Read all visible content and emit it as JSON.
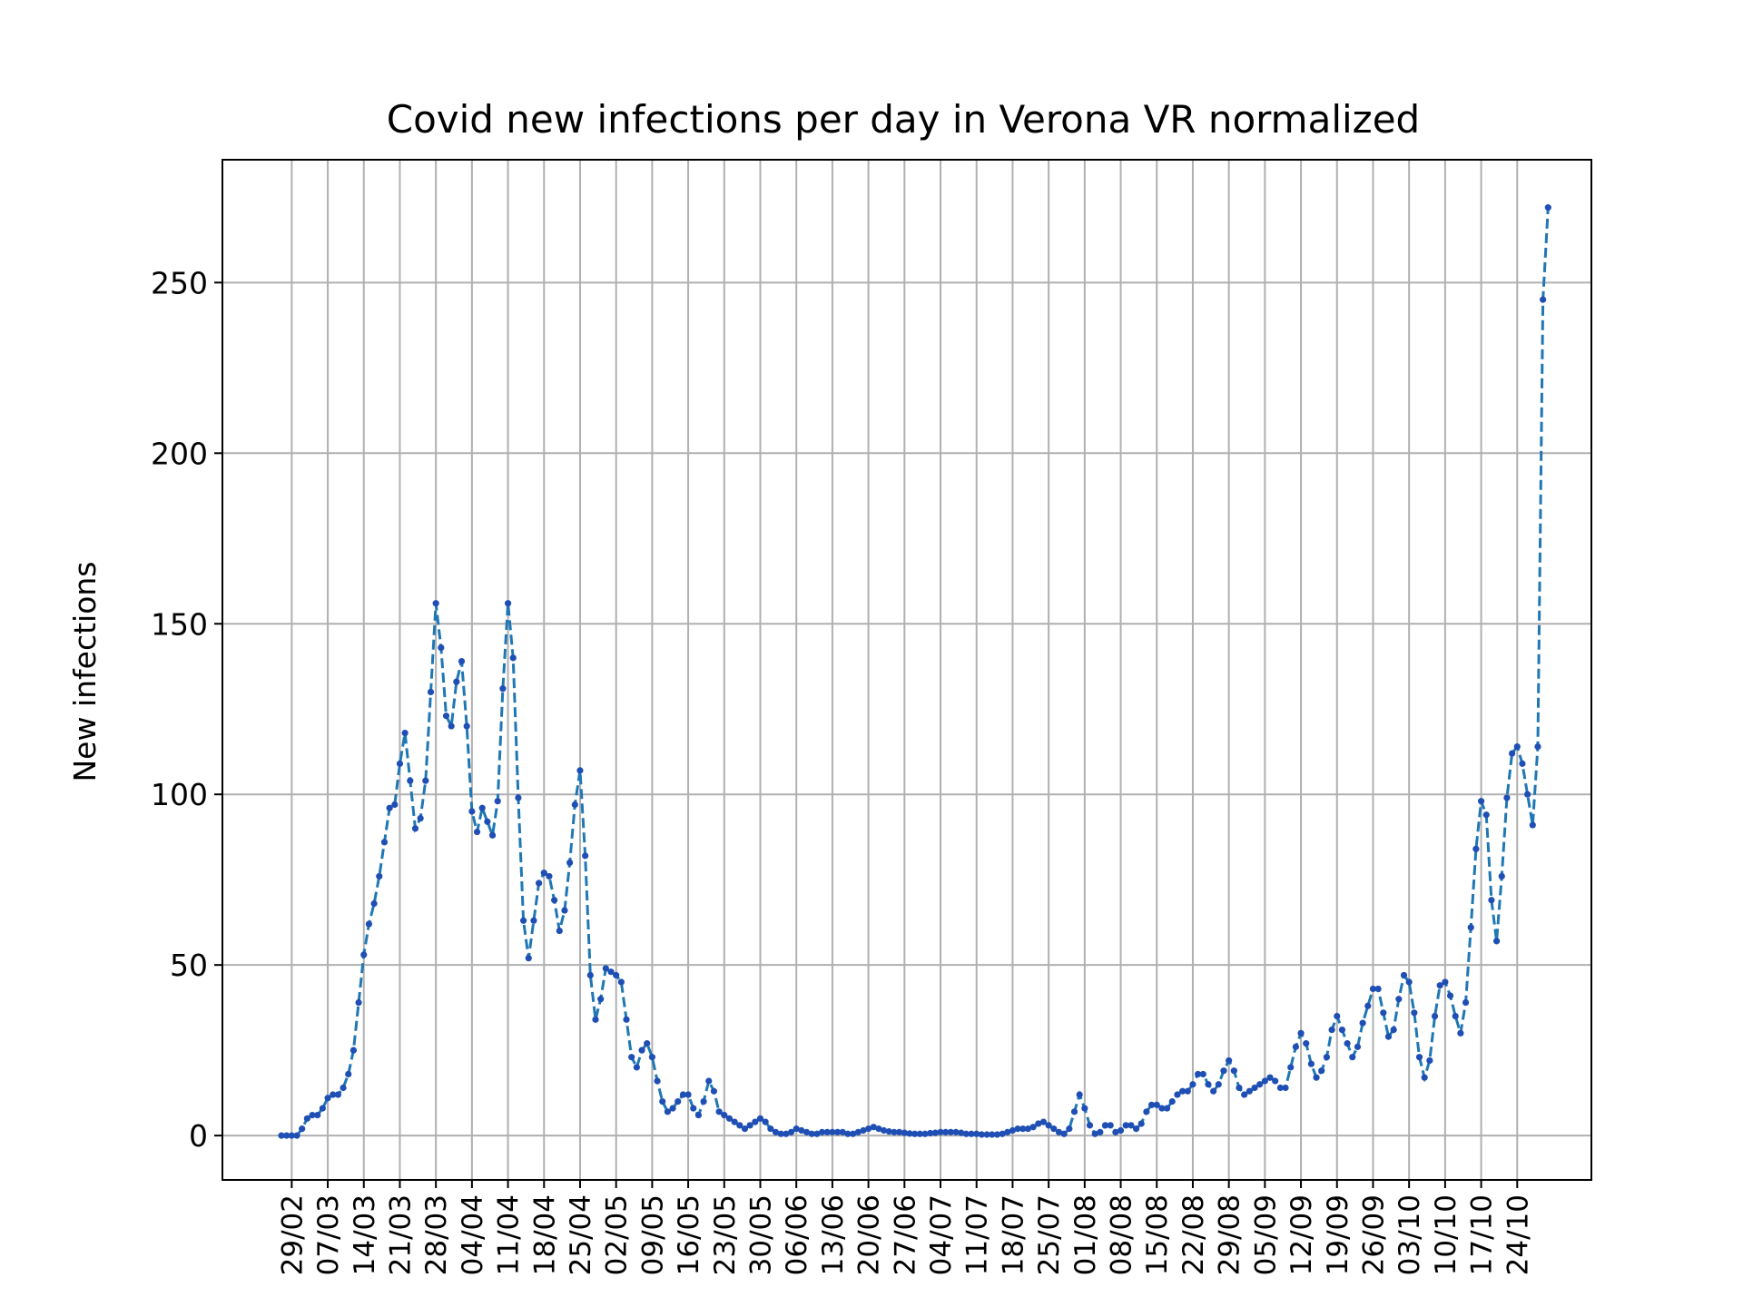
{
  "chart_data": {
    "type": "line",
    "title": "Covid new infections per day in Verona VR normalized",
    "xlabel": "",
    "ylabel": "New infections",
    "ylim": [
      -13,
      286
    ],
    "yticks": [
      0,
      50,
      100,
      150,
      200,
      250
    ],
    "x_start_date": "2020-02-27",
    "xtick_labels": [
      "29/02",
      "07/03",
      "14/03",
      "21/03",
      "28/03",
      "04/04",
      "11/04",
      "18/04",
      "25/04",
      "02/05",
      "09/05",
      "16/05",
      "23/05",
      "30/05",
      "06/06",
      "13/06",
      "20/06",
      "27/06",
      "04/07",
      "11/07",
      "18/07",
      "25/07",
      "01/08",
      "08/08",
      "15/08",
      "22/08",
      "29/08",
      "05/09",
      "12/09",
      "19/09",
      "26/09",
      "03/10",
      "10/10",
      "17/10",
      "24/10"
    ],
    "grid": true,
    "line_color": "#1f77b4",
    "marker_color": "#1f4fb4",
    "series": [
      {
        "values": [
          0,
          0,
          0,
          0,
          2,
          5,
          6,
          6,
          8,
          11,
          12,
          12,
          14,
          18,
          25,
          39,
          53,
          62,
          68,
          76,
          86,
          96,
          97,
          109,
          118,
          104,
          90,
          93,
          104,
          130,
          156,
          143,
          123,
          120,
          133,
          139,
          120,
          95,
          89,
          96,
          92,
          88,
          98,
          131,
          156,
          140,
          99,
          63,
          52,
          63,
          74,
          77,
          76,
          69,
          60,
          66,
          80,
          97,
          107,
          82,
          47,
          34,
          40,
          49,
          48,
          47,
          45,
          34,
          23,
          20,
          25,
          27,
          23,
          16,
          10,
          7,
          8,
          10,
          12,
          12,
          8,
          6,
          10,
          16,
          13,
          7,
          6,
          5,
          4,
          3,
          2,
          3,
          4,
          5,
          4,
          2,
          1,
          0.5,
          0.5,
          1,
          2,
          1.5,
          1,
          0.5,
          0.5,
          1,
          1,
          1,
          1,
          1,
          0.5,
          0.5,
          1,
          1.5,
          2,
          2.5,
          2,
          1.5,
          1.2,
          1,
          1,
          0.8,
          0.6,
          0.5,
          0.5,
          0.5,
          0.7,
          0.8,
          1,
          1,
          1,
          1,
          0.8,
          0.5,
          0.5,
          0.5,
          0.3,
          0.3,
          0.3,
          0.3,
          0.5,
          1,
          1.5,
          2,
          2,
          2,
          2.5,
          3.5,
          4,
          3,
          2,
          1,
          0.5,
          2,
          7,
          12,
          8,
          3,
          0.5,
          1,
          3,
          3,
          1,
          1.5,
          3,
          3,
          2,
          3.5,
          7,
          9,
          9,
          8,
          8,
          10,
          12,
          13,
          13,
          15,
          18,
          18,
          15,
          13,
          15,
          19,
          22,
          19,
          14,
          12,
          13,
          14,
          15,
          16,
          17,
          16,
          14,
          14,
          20,
          26,
          30,
          27,
          21,
          17,
          19,
          23,
          31,
          35,
          31,
          27,
          23,
          26,
          33,
          38,
          43,
          43,
          36,
          29,
          31,
          40,
          47,
          45,
          36,
          23,
          17,
          22,
          35,
          44,
          45,
          41,
          35,
          30,
          39,
          61,
          84,
          98,
          94,
          69,
          57,
          76,
          99,
          112,
          114,
          109,
          100,
          91,
          114,
          245,
          272
        ]
      }
    ]
  }
}
